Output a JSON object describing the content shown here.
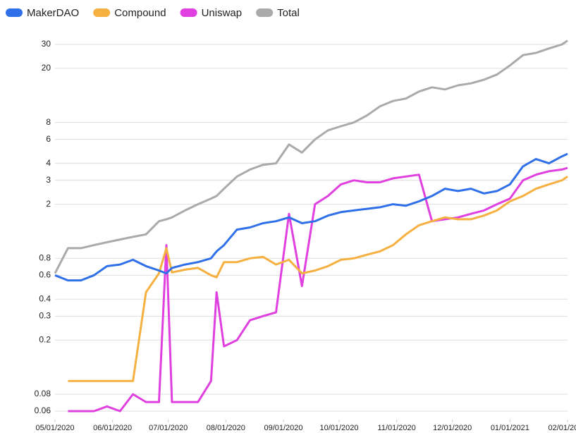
{
  "chart_data": {
    "type": "line",
    "log_scale": true,
    "grid": true,
    "legend": "top-left",
    "x": [
      "2020-05-01",
      "2020-05-08",
      "2020-05-15",
      "2020-05-22",
      "2020-05-29",
      "2020-06-05",
      "2020-06-12",
      "2020-06-19",
      "2020-06-26",
      "2020-06-30",
      "2020-07-03",
      "2020-07-10",
      "2020-07-17",
      "2020-07-24",
      "2020-07-27",
      "2020-07-31",
      "2020-08-07",
      "2020-08-14",
      "2020-08-21",
      "2020-08-28",
      "2020-09-04",
      "2020-09-11",
      "2020-09-18",
      "2020-09-25",
      "2020-10-02",
      "2020-10-09",
      "2020-10-16",
      "2020-10-23",
      "2020-10-30",
      "2020-11-06",
      "2020-11-13",
      "2020-11-20",
      "2020-11-27",
      "2020-12-04",
      "2020-12-11",
      "2020-12-18",
      "2020-12-25",
      "2021-01-01",
      "2021-01-08",
      "2021-01-15",
      "2021-01-22",
      "2021-01-29",
      "2021-02-01"
    ],
    "series": [
      {
        "name": "MakerDAO",
        "color": "#2f6fe8",
        "values": [
          0.6,
          0.55,
          0.55,
          0.6,
          0.7,
          0.72,
          0.78,
          0.7,
          0.65,
          0.62,
          0.68,
          0.72,
          0.75,
          0.8,
          0.9,
          1.0,
          1.3,
          1.35,
          1.45,
          1.5,
          1.6,
          1.45,
          1.5,
          1.65,
          1.75,
          1.8,
          1.85,
          1.9,
          2.0,
          1.95,
          2.1,
          2.3,
          2.6,
          2.5,
          2.6,
          2.4,
          2.5,
          2.8,
          3.8,
          4.3,
          4.0,
          4.5,
          4.7
        ]
      },
      {
        "name": "Compound",
        "color": "#f5b041",
        "values": [
          null,
          0.1,
          0.1,
          0.1,
          0.1,
          0.1,
          0.1,
          0.45,
          0.62,
          0.95,
          0.63,
          0.66,
          0.68,
          0.6,
          0.58,
          0.75,
          0.75,
          0.8,
          0.82,
          0.72,
          0.78,
          0.62,
          0.65,
          0.7,
          0.78,
          0.8,
          0.85,
          0.9,
          1.0,
          1.2,
          1.4,
          1.5,
          1.6,
          1.55,
          1.55,
          1.65,
          1.8,
          2.1,
          2.3,
          2.6,
          2.8,
          3.0,
          3.2
        ]
      },
      {
        "name": "Uniswap",
        "color": "#e040e0",
        "values": [
          null,
          0.06,
          0.06,
          0.06,
          0.065,
          0.06,
          0.08,
          0.07,
          0.07,
          1.0,
          0.07,
          0.07,
          0.07,
          0.1,
          0.45,
          0.18,
          0.2,
          0.28,
          0.3,
          0.32,
          1.7,
          0.5,
          2.0,
          2.3,
          2.8,
          3.0,
          2.9,
          2.9,
          3.1,
          3.2,
          3.3,
          1.5,
          1.55,
          1.6,
          1.7,
          1.8,
          2.0,
          2.2,
          3.0,
          3.3,
          3.5,
          3.6,
          3.7
        ]
      },
      {
        "name": "Total",
        "color": "#aaaaaa",
        "values": [
          0.62,
          0.95,
          0.95,
          1.0,
          1.05,
          1.1,
          1.15,
          1.2,
          1.5,
          1.55,
          1.6,
          1.8,
          2.0,
          2.2,
          2.3,
          2.6,
          3.2,
          3.6,
          3.9,
          4.0,
          5.5,
          4.8,
          6.0,
          7.0,
          7.5,
          8.0,
          9.0,
          10.5,
          11.5,
          12.0,
          13.5,
          14.5,
          14.0,
          15.0,
          15.5,
          16.5,
          18.0,
          21.0,
          25,
          26,
          28,
          30,
          32
        ]
      }
    ],
    "xlim": [
      "2020-05-01",
      "2021-02-01"
    ],
    "xticks": [
      {
        "value": "2020-05-01",
        "label": "05/01/2020"
      },
      {
        "value": "2020-06-01",
        "label": "06/01/2020"
      },
      {
        "value": "2020-07-01",
        "label": "07/01/2020"
      },
      {
        "value": "2020-08-01",
        "label": "08/01/2020"
      },
      {
        "value": "2020-09-01",
        "label": "09/01/2020"
      },
      {
        "value": "2020-10-01",
        "label": "10/01/2020"
      },
      {
        "value": "2020-11-01",
        "label": "11/01/2020"
      },
      {
        "value": "2020-12-01",
        "label": "12/01/2020"
      },
      {
        "value": "2021-01-01",
        "label": "01/01/2021"
      },
      {
        "value": "2021-02-01",
        "label": "02/01/2021"
      }
    ],
    "ylim": [
      0.052,
      33
    ],
    "yticks": [
      0.06,
      0.08,
      0.2,
      0.3,
      0.4,
      0.6,
      0.8,
      2,
      3,
      4,
      6,
      8,
      20,
      30
    ]
  }
}
